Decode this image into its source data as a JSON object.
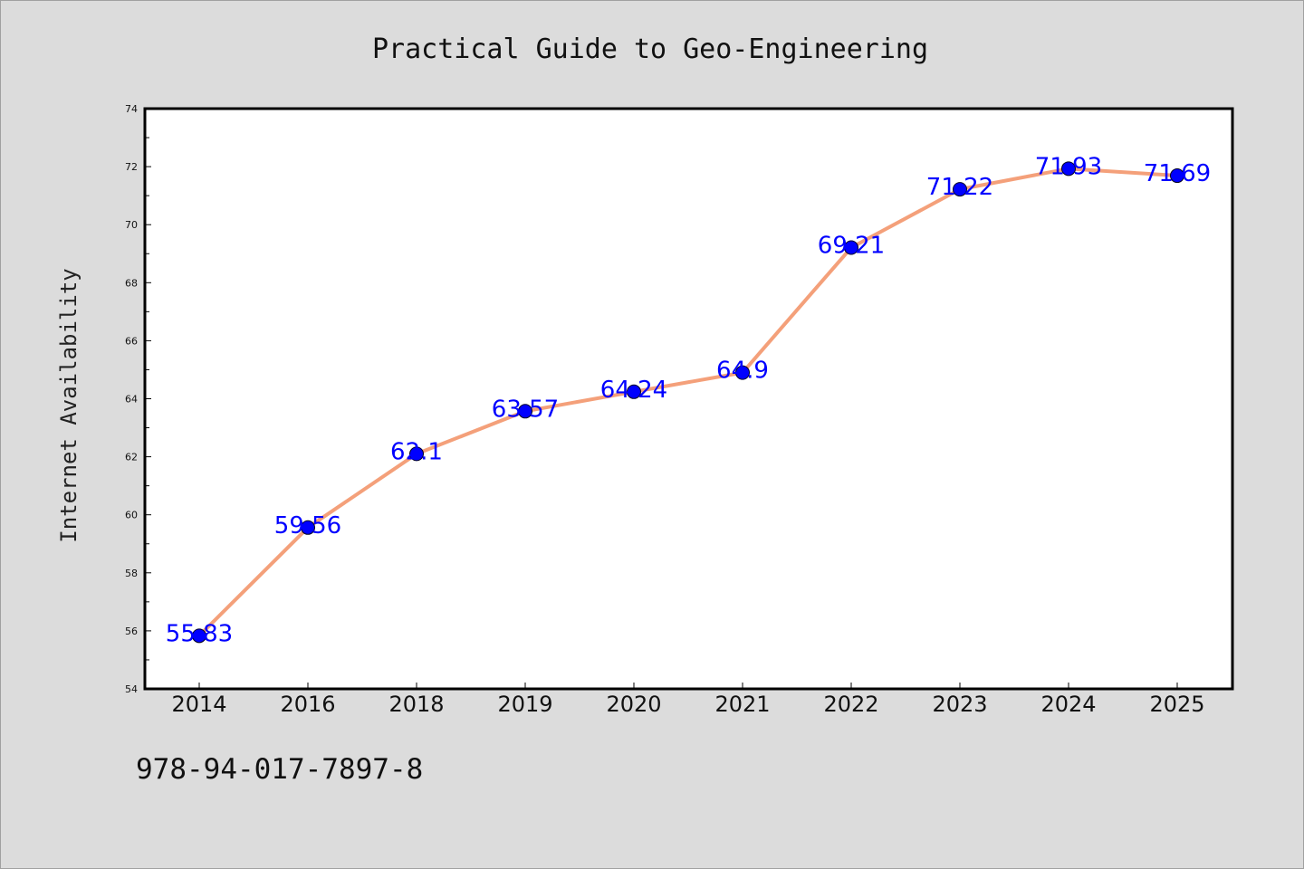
{
  "chart_data": {
    "type": "line",
    "title": "Practical Guide to Geo-Engineering",
    "xlabel": "",
    "ylabel": "Internet Availability",
    "categories": [
      "2014",
      "2016",
      "2018",
      "2019",
      "2020",
      "2021",
      "2022",
      "2023",
      "2024",
      "2025"
    ],
    "series": [
      {
        "values": [
          55.83,
          59.56,
          62.1,
          63.57,
          64.24,
          64.9,
          69.21,
          71.22,
          71.93,
          71.69
        ],
        "data_labels": [
          "55.83",
          "59.56",
          "62.1",
          "63.57",
          "64.24",
          "64.9",
          "69.21",
          "71.22",
          "71.93",
          "71.69"
        ],
        "line_color": "#f4a07a",
        "marker_color": "#0000ff"
      }
    ],
    "ylim": [
      54,
      74
    ],
    "yticks": [
      "54",
      "56",
      "58",
      "60",
      "62",
      "64",
      "66",
      "68",
      "70",
      "72",
      "74"
    ],
    "grid": false,
    "legend": "none"
  },
  "footnote": "978-94-017-7897-8",
  "colors": {
    "background": "#dcdcdc",
    "plot_background": "#ffffff",
    "line": "#f4a07a",
    "marker": "#0000ff",
    "data_label": "#0000ff"
  }
}
